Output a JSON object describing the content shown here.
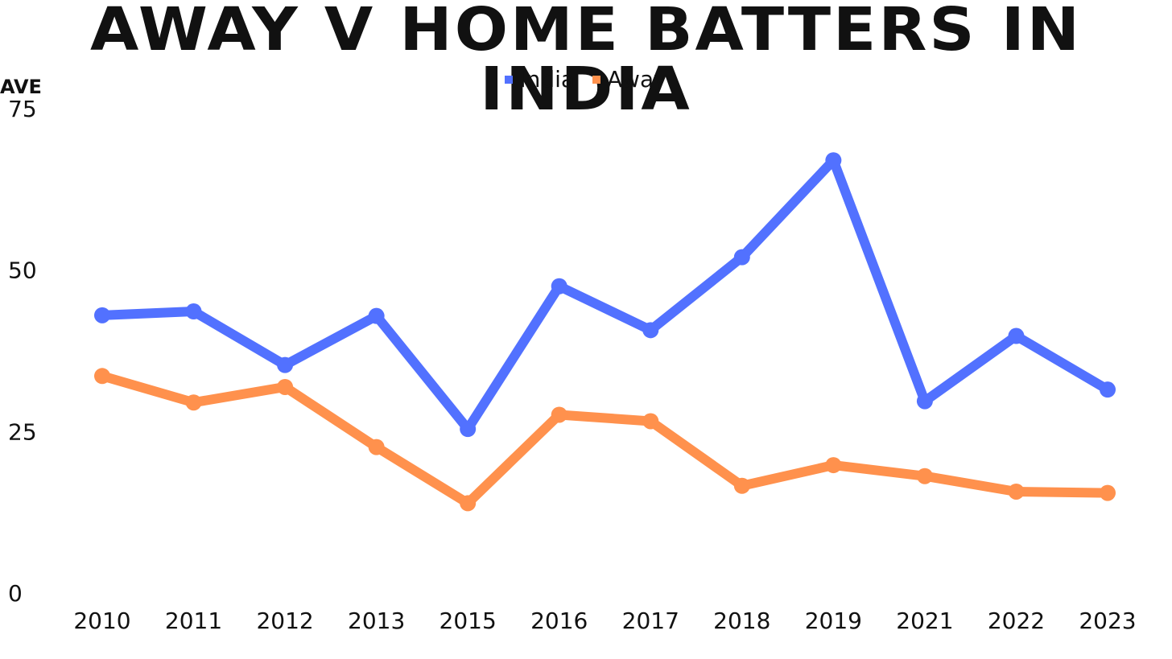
{
  "chart_data": {
    "type": "line",
    "title": "Away v Home Batters in India",
    "ylabel": "Ave",
    "xlabel": "",
    "categories": [
      "2010",
      "2011",
      "2012",
      "2013",
      "2015",
      "2016",
      "2017",
      "2018",
      "2019",
      "2021",
      "2022",
      "2023"
    ],
    "ylim": [
      0,
      75
    ],
    "yticks": [
      0,
      25,
      50,
      75
    ],
    "legend_position": "top-center",
    "grid": false,
    "series": [
      {
        "name": "India",
        "color": "#5271FF",
        "values": [
          43.0,
          43.6,
          35.3,
          42.9,
          25.4,
          47.5,
          40.7,
          52.0,
          67.0,
          29.7,
          39.8,
          31.5
        ]
      },
      {
        "name": "Away",
        "color": "#FF914D",
        "values": [
          33.6,
          29.5,
          31.9,
          22.6,
          13.9,
          27.6,
          26.6,
          16.6,
          19.8,
          18.1,
          15.7,
          15.5
        ]
      }
    ]
  }
}
